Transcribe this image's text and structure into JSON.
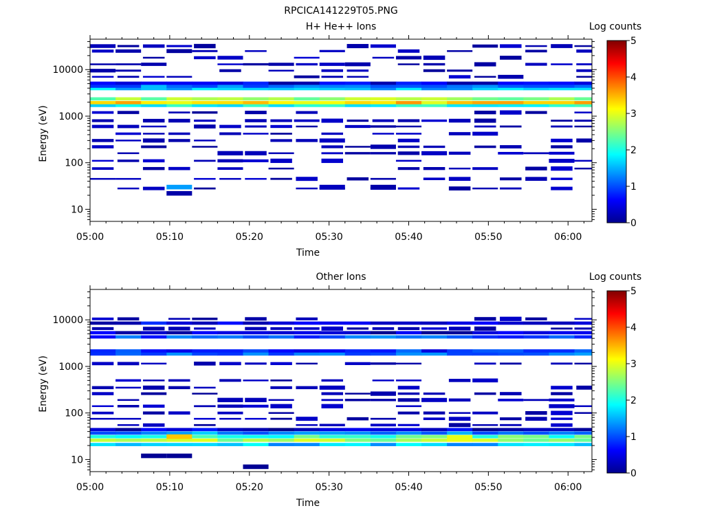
{
  "page_title": "RPCICA141229T05.PNG",
  "chart_data": [
    {
      "type": "heatmap",
      "title": "H+ He++ Ions",
      "xlabel": "Time",
      "ylabel": "Energy (eV)",
      "x_ticks": [
        "05:00",
        "05:10",
        "05:20",
        "05:30",
        "05:40",
        "05:50",
        "06:00"
      ],
      "y_ticks": [
        "10",
        "100",
        "1000",
        "10000"
      ],
      "y_scale": "log",
      "ylim": [
        5.5,
        45000
      ],
      "xlim": [
        "05:00",
        "06:03"
      ],
      "colorbar": {
        "label": "Log counts",
        "ticks": [
          "0",
          "1",
          "2",
          "3",
          "4",
          "5"
        ],
        "range": [
          0,
          5
        ]
      },
      "time_bins_min": [
        1.6,
        4.8,
        8.0,
        11.2,
        14.4,
        17.6,
        20.8,
        24.0,
        27.2,
        30.4,
        33.6,
        36.8,
        40.0,
        43.2,
        46.4,
        49.6,
        52.8,
        56.0,
        59.2,
        62.4
      ],
      "persistent_bands": [
        {
          "energy_eV": 1700,
          "log_counts": 2.0
        },
        {
          "energy_eV": 1950,
          "log_counts": 3.3
        },
        {
          "energy_eV": 2350,
          "log_counts": 2.6
        },
        {
          "energy_eV": 3900,
          "log_counts": 1.6
        },
        {
          "energy_eV": 4400,
          "log_counts": 1.2
        },
        {
          "energy_eV": 5100,
          "log_counts": 0.5
        }
      ],
      "sporadic_levels_eV": [
        28,
        45,
        75,
        110,
        160,
        220,
        300,
        420,
        600,
        800,
        1200,
        7000,
        9500,
        13000,
        18000,
        25000,
        32000
      ],
      "sporadic_log_counts": 0.3,
      "low_energy_patches": [
        {
          "time_min": 11.2,
          "energy_eV": 30,
          "log_counts": 1.4
        },
        {
          "time_min": 11.2,
          "energy_eV": 22,
          "log_counts": 0.2
        },
        {
          "time_min": 30.4,
          "energy_eV": 30,
          "log_counts": 0.3
        },
        {
          "time_min": 36.8,
          "energy_eV": 30,
          "log_counts": 0.2
        }
      ]
    },
    {
      "type": "heatmap",
      "title": "Other Ions",
      "xlabel": "Time",
      "ylabel": "Energy (eV)",
      "x_ticks": [
        "05:00",
        "05:10",
        "05:20",
        "05:30",
        "05:40",
        "05:50",
        "06:00"
      ],
      "y_ticks": [
        "10",
        "100",
        "1000",
        "10000"
      ],
      "y_scale": "log",
      "ylim": [
        5.5,
        45000
      ],
      "xlim": [
        "05:00",
        "06:03"
      ],
      "colorbar": {
        "label": "Log counts",
        "ticks": [
          "0",
          "1",
          "2",
          "3",
          "4",
          "5"
        ],
        "range": [
          0,
          5
        ]
      },
      "time_bins_min": [
        1.6,
        4.8,
        8.0,
        11.2,
        14.4,
        17.6,
        20.8,
        24.0,
        27.2,
        30.4,
        33.6,
        36.8,
        40.0,
        43.2,
        46.4,
        49.6,
        52.8,
        56.0,
        59.2,
        62.4
      ],
      "persistent_bands": [
        {
          "energy_eV": 1850,
          "log_counts": 1.2
        },
        {
          "energy_eV": 2150,
          "log_counts": 0.8
        },
        {
          "energy_eV": 4300,
          "log_counts": 1.0
        },
        {
          "energy_eV": 5300,
          "log_counts": 0.4
        },
        {
          "energy_eV": 8500,
          "log_counts": 0.5
        },
        {
          "energy_eV": 21,
          "log_counts": 1.6
        },
        {
          "energy_eV": 26,
          "log_counts": 2.7
        },
        {
          "energy_eV": 31,
          "log_counts": 2.2
        },
        {
          "energy_eV": 37,
          "log_counts": 1.3
        },
        {
          "energy_eV": 44,
          "log_counts": 0.4
        }
      ],
      "sporadic_levels_eV": [
        55,
        75,
        100,
        140,
        190,
        260,
        350,
        500,
        1150,
        6500,
        10500
      ],
      "sporadic_log_counts": 0.3,
      "low_energy_patches": [
        {
          "time_min": 11.2,
          "energy_eV": 31,
          "log_counts": 3.4
        },
        {
          "time_min": 46.4,
          "energy_eV": 30,
          "log_counts": 3.0
        },
        {
          "time_min": 20.8,
          "energy_eV": 7,
          "log_counts": 0.1
        },
        {
          "time_min": 8.0,
          "energy_eV": 12,
          "log_counts": 0.1
        },
        {
          "time_min": 11.2,
          "energy_eV": 12,
          "log_counts": 0.1
        }
      ]
    }
  ]
}
